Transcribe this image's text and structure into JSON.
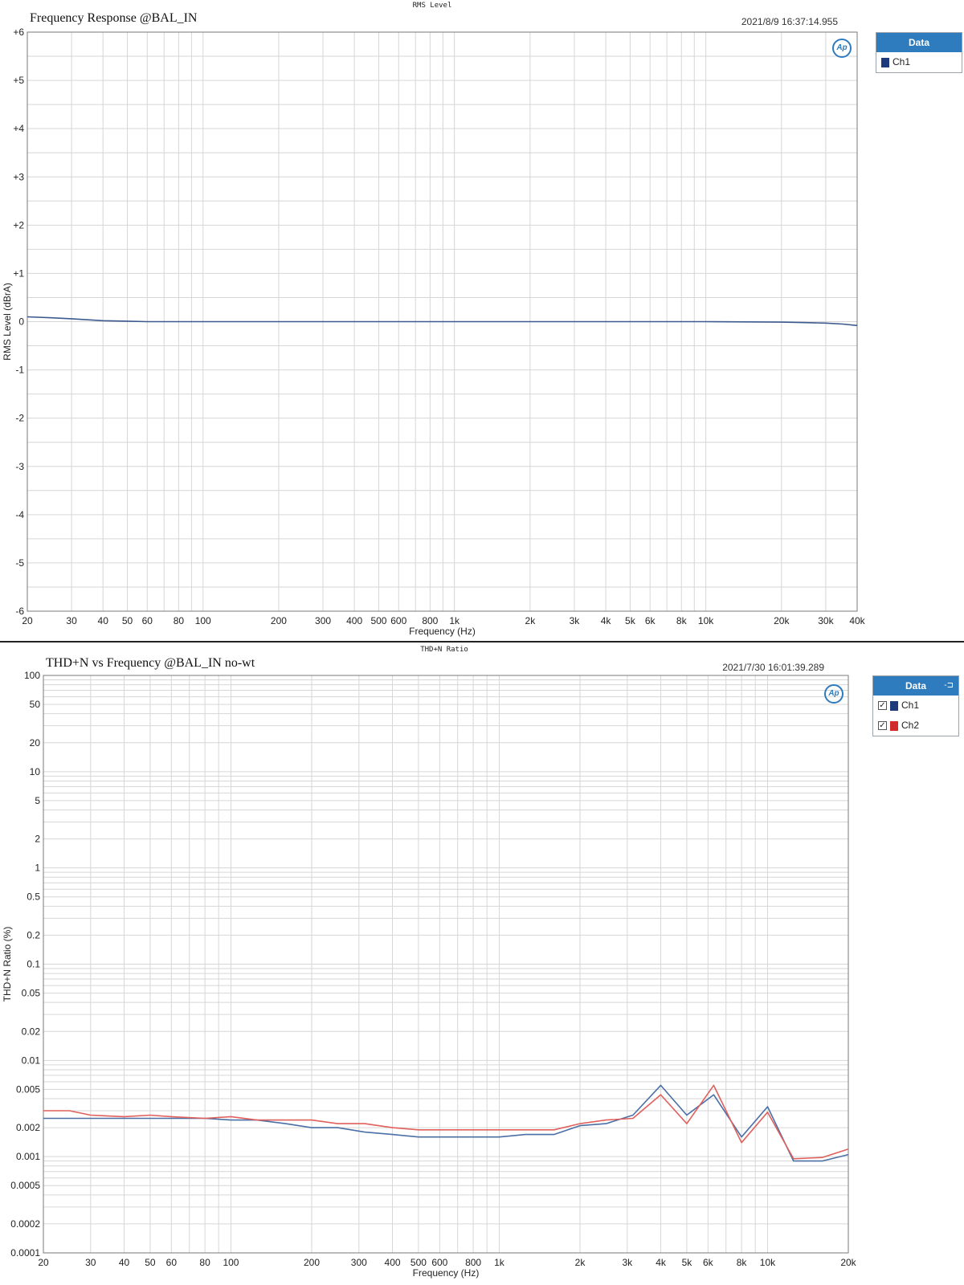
{
  "charts": [
    {
      "header_label": "RMS Level",
      "title": "Frequency Response @BAL_IN",
      "timestamp": "2021/8/9 16:37:14.955",
      "logo_text": "Ap",
      "legend": {
        "title": "Data",
        "pin_icon": "",
        "items": [
          {
            "name": "Ch1",
            "color": "#1f3a7a",
            "checkbox": false
          }
        ]
      }
    },
    {
      "header_label": "THD+N Ratio",
      "title": "THD+N vs Frequency @BAL_IN  no-wt",
      "timestamp": "2021/7/30 16:01:39.289",
      "logo_text": "Ap",
      "legend": {
        "title": "Data",
        "pin_icon": "-⊐",
        "items": [
          {
            "name": "Ch1",
            "color": "#1f3a7a",
            "checkbox": true,
            "check_mark": "✓"
          },
          {
            "name": "Ch2",
            "color": "#d22b2b",
            "checkbox": true,
            "check_mark": "✓"
          }
        ]
      }
    }
  ],
  "chart_data": [
    {
      "type": "line",
      "title": "Frequency Response @BAL_IN",
      "xlabel": "Frequency (Hz)",
      "ylabel": "RMS Level (dBrA)",
      "xscale": "log",
      "xlim": [
        20,
        40000
      ],
      "ylim": [
        -6,
        6
      ],
      "grid": true,
      "legend_position": "right-outside",
      "x_ticks": [
        20,
        30,
        40,
        50,
        60,
        80,
        100,
        200,
        300,
        400,
        500,
        600,
        800,
        1000,
        2000,
        3000,
        4000,
        5000,
        6000,
        8000,
        10000,
        20000,
        30000,
        40000
      ],
      "x_tick_labels": [
        "20",
        "30",
        "40",
        "50",
        "60",
        "80",
        "100",
        "200",
        "300",
        "400",
        "500",
        "600",
        "800",
        "1k",
        "2k",
        "3k",
        "4k",
        "5k",
        "6k",
        "8k",
        "10k",
        "20k",
        "30k",
        "40k"
      ],
      "y_ticks": [
        6,
        5,
        4,
        3,
        2,
        1,
        0,
        -1,
        -2,
        -3,
        -4,
        -5,
        -6
      ],
      "y_tick_labels": [
        "+6",
        "+5",
        "+4",
        "+3",
        "+2",
        "+1",
        "0",
        "-1",
        "-2",
        "-3",
        "-4",
        "-5",
        "-6"
      ],
      "series": [
        {
          "name": "Ch1",
          "color": "#3b5a8f",
          "x": [
            20,
            25,
            30,
            40,
            50,
            60,
            100,
            200,
            500,
            1000,
            5000,
            10000,
            20000,
            25000,
            30000,
            35000,
            40000
          ],
          "y": [
            0.1,
            0.08,
            0.06,
            0.02,
            0.01,
            0.0,
            0.0,
            0.0,
            0.0,
            0.0,
            0.0,
            0.0,
            -0.01,
            -0.02,
            -0.03,
            -0.05,
            -0.08
          ]
        }
      ]
    },
    {
      "type": "line",
      "title": "THD+N vs Frequency @BAL_IN  no-wt",
      "xlabel": "Frequency (Hz)",
      "ylabel": "THD+N Ratio (%)",
      "xscale": "log",
      "yscale": "log",
      "xlim": [
        20,
        20000
      ],
      "ylim": [
        0.0001,
        100
      ],
      "grid": true,
      "legend_position": "right-outside",
      "x_ticks": [
        20,
        30,
        40,
        50,
        60,
        80,
        100,
        200,
        300,
        400,
        500,
        600,
        800,
        1000,
        2000,
        3000,
        4000,
        5000,
        6000,
        8000,
        10000,
        20000
      ],
      "x_tick_labels": [
        "20",
        "30",
        "40",
        "50",
        "60",
        "80",
        "100",
        "200",
        "300",
        "400",
        "500",
        "600",
        "800",
        "1k",
        "2k",
        "3k",
        "4k",
        "5k",
        "6k",
        "8k",
        "10k",
        "20k"
      ],
      "y_ticks": [
        100,
        50,
        20,
        10,
        5,
        2,
        1,
        0.5,
        0.2,
        0.1,
        0.05,
        0.02,
        0.01,
        0.005,
        0.002,
        0.001,
        0.0005,
        0.0002,
        0.0001
      ],
      "y_tick_labels": [
        "100",
        "50",
        "20",
        "10",
        "5",
        "2",
        "1",
        "0.5",
        "0.2",
        "0.1",
        "0.05",
        "0.02",
        "0.01",
        "0.005",
        "0.002",
        "0.001",
        "0.0005",
        "0.0002",
        "0.0001"
      ],
      "series": [
        {
          "name": "Ch1",
          "color": "#4a6fa5",
          "x": [
            20,
            25,
            30,
            40,
            50,
            60,
            80,
            100,
            125,
            160,
            200,
            250,
            315,
            400,
            500,
            630,
            800,
            1000,
            1250,
            1600,
            2000,
            2500,
            3150,
            4000,
            5000,
            6300,
            8000,
            10000,
            12500,
            16000,
            20000
          ],
          "y": [
            0.0025,
            0.0025,
            0.0025,
            0.0025,
            0.0025,
            0.0025,
            0.0025,
            0.0024,
            0.0024,
            0.0022,
            0.002,
            0.002,
            0.0018,
            0.0017,
            0.0016,
            0.0016,
            0.0016,
            0.0016,
            0.0017,
            0.0017,
            0.0021,
            0.0022,
            0.0027,
            0.0055,
            0.0027,
            0.0044,
            0.0016,
            0.0033,
            0.0009,
            0.0009,
            0.00105
          ]
        },
        {
          "name": "Ch2",
          "color": "#e0605c",
          "x": [
            20,
            25,
            30,
            40,
            50,
            60,
            80,
            100,
            125,
            160,
            200,
            250,
            315,
            400,
            500,
            630,
            800,
            1000,
            1250,
            1600,
            2000,
            2500,
            3150,
            4000,
            5000,
            6300,
            8000,
            10000,
            12500,
            16000,
            20000
          ],
          "y": [
            0.003,
            0.003,
            0.0027,
            0.0026,
            0.0027,
            0.0026,
            0.0025,
            0.0026,
            0.0024,
            0.0024,
            0.0024,
            0.0022,
            0.0022,
            0.002,
            0.0019,
            0.0019,
            0.0019,
            0.0019,
            0.0019,
            0.0019,
            0.0022,
            0.0024,
            0.0025,
            0.0044,
            0.0022,
            0.0055,
            0.0014,
            0.0029,
            0.00095,
            0.00098,
            0.0012
          ]
        }
      ]
    }
  ]
}
